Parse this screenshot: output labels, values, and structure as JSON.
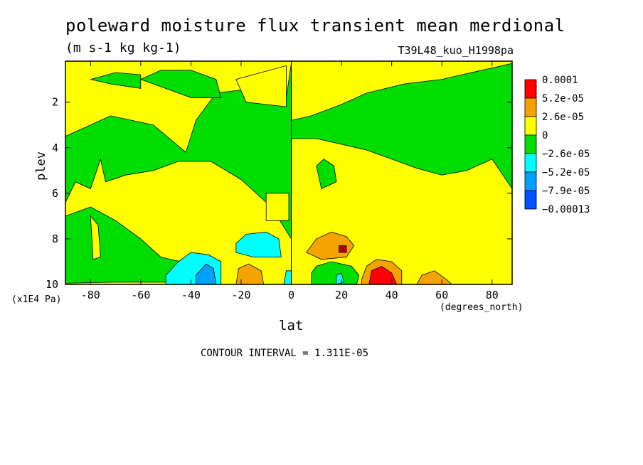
{
  "chart_data": {
    "type": "heatmap",
    "title": "poleward moisture flux transient mean merdional",
    "subtitle": "(m s-1 kg kg-1)",
    "case_label": "T39L48_kuo_H1998pa",
    "xlabel": "lat",
    "x_units": "(degrees_north)",
    "ylabel": "plev",
    "y_units": "(x1E4 Pa)",
    "x_ticks": [
      "-80",
      "-60",
      "-40",
      "-20",
      "0",
      "20",
      "40",
      "60",
      "80"
    ],
    "y_ticks": [
      "2",
      "4",
      "6",
      "8",
      "10"
    ],
    "xlim": [
      -90,
      88
    ],
    "ylim": [
      10,
      0.2
    ],
    "contour_interval_text": "CONTOUR INTERVAL = 1.311E-05",
    "legend_labels": [
      "0.0001",
      "5.2e-05",
      "2.6e-05",
      "0",
      "−2.6e-05",
      "−5.2e-05",
      "−7.9e-05",
      "−0.00013"
    ],
    "colors": {
      "red": "#ff0000",
      "orange": "#f5a300",
      "yellow": "#ffff00",
      "green": "#00dd00",
      "cyan": "#00ffff",
      "lightblue": "#00a0ff",
      "blue": "#0050ff",
      "darkred": "#b00000"
    },
    "regions": [
      {
        "fill": "green",
        "points": [
          [
            -90,
            3.5
          ],
          [
            -80,
            3
          ],
          [
            -72,
            2.6
          ],
          [
            -55,
            3
          ],
          [
            -42,
            4.2
          ],
          [
            -38,
            2.8
          ],
          [
            -30,
            1.6
          ],
          [
            -15,
            1.4
          ],
          [
            -2,
            1.8
          ],
          [
            0,
            0.3
          ],
          [
            0,
            2.8
          ],
          [
            8,
            2.6
          ],
          [
            20,
            2.1
          ],
          [
            30,
            1.6
          ],
          [
            45,
            1.2
          ],
          [
            60,
            1
          ],
          [
            88,
            0.3
          ],
          [
            88,
            5.8
          ],
          [
            80,
            4.5
          ],
          [
            70,
            5
          ],
          [
            60,
            5.2
          ],
          [
            50,
            4.9
          ],
          [
            40,
            4.5
          ],
          [
            30,
            4.1
          ],
          [
            10,
            3.6
          ],
          [
            0,
            3.6
          ],
          [
            0,
            8
          ],
          [
            -8,
            6.6
          ],
          [
            -20,
            5.4
          ],
          [
            -32,
            4.6
          ],
          [
            -45,
            4.6
          ],
          [
            -55,
            5
          ],
          [
            -66,
            5.2
          ],
          [
            -74,
            5.5
          ],
          [
            -76,
            4.5
          ],
          [
            -80,
            5.8
          ],
          [
            -86,
            5.5
          ],
          [
            -90,
            6.4
          ]
        ]
      },
      {
        "fill": "green",
        "points": [
          [
            -90,
            7
          ],
          [
            -80,
            6.6
          ],
          [
            -70,
            7.2
          ],
          [
            -60,
            8
          ],
          [
            -52,
            8.8
          ],
          [
            -44,
            9
          ],
          [
            -40,
            9.6
          ],
          [
            -50,
            9.9
          ],
          [
            -70,
            9.9
          ],
          [
            -90,
            9.95
          ]
        ]
      },
      {
        "fill": "yellow",
        "points": [
          [
            -80,
            7
          ],
          [
            -77,
            7.4
          ],
          [
            -76,
            8.8
          ],
          [
            -79,
            8.9
          ]
        ]
      },
      {
        "fill": "yellow",
        "points": [
          [
            -10,
            6
          ],
          [
            -1,
            6
          ],
          [
            -1,
            7.2
          ],
          [
            -10,
            7.2
          ]
        ]
      },
      {
        "fill": "yellow",
        "points": [
          [
            -22,
            1
          ],
          [
            -2,
            0.4
          ],
          [
            -2,
            2.2
          ],
          [
            -18,
            2
          ]
        ]
      },
      {
        "fill": "green",
        "points": [
          [
            10,
            4.8
          ],
          [
            13,
            4.5
          ],
          [
            17,
            4.8
          ],
          [
            18,
            5.5
          ],
          [
            12,
            5.8
          ]
        ]
      },
      {
        "fill": "green",
        "points": [
          [
            -80,
            1
          ],
          [
            -70,
            0.7
          ],
          [
            -60,
            0.8
          ],
          [
            -60,
            1.4
          ],
          [
            -72,
            1.2
          ]
        ]
      },
      {
        "fill": "cyan",
        "points": [
          [
            -50,
            9.6
          ],
          [
            -45,
            9
          ],
          [
            -40,
            8.6
          ],
          [
            -33,
            8.7
          ],
          [
            -28,
            9
          ],
          [
            -28,
            10
          ],
          [
            -50,
            10
          ]
        ]
      },
      {
        "fill": "lightblue",
        "points": [
          [
            -38,
            9.6
          ],
          [
            -34,
            9.1
          ],
          [
            -31,
            9.3
          ],
          [
            -30,
            10
          ],
          [
            -38,
            10
          ]
        ]
      },
      {
        "fill": "cyan",
        "points": [
          [
            -22,
            8.2
          ],
          [
            -18,
            7.8
          ],
          [
            -10,
            7.7
          ],
          [
            -5,
            8
          ],
          [
            -4,
            8.8
          ],
          [
            -15,
            8.8
          ],
          [
            -22,
            8.6
          ]
        ]
      },
      {
        "fill": "orange",
        "points": [
          [
            -22,
            10
          ],
          [
            -21,
            9.3
          ],
          [
            -17,
            9.1
          ],
          [
            -12,
            9.4
          ],
          [
            -11,
            10
          ]
        ]
      },
      {
        "fill": "cyan",
        "points": [
          [
            -3,
            10
          ],
          [
            -2,
            9.4
          ],
          [
            0,
            9.4
          ],
          [
            0,
            10
          ]
        ]
      },
      {
        "fill": "orange",
        "points": [
          [
            6,
            8.6
          ],
          [
            10,
            8
          ],
          [
            16,
            7.7
          ],
          [
            22,
            7.9
          ],
          [
            25,
            8.3
          ],
          [
            22,
            8.8
          ],
          [
            12,
            8.9
          ]
        ]
      },
      {
        "fill": "darkred",
        "points": [
          [
            19,
            8.3
          ],
          [
            22,
            8.3
          ],
          [
            22,
            8.6
          ],
          [
            19,
            8.6
          ]
        ]
      },
      {
        "fill": "green",
        "points": [
          [
            8,
            9.5
          ],
          [
            10,
            9.2
          ],
          [
            16,
            9
          ],
          [
            24,
            9.2
          ],
          [
            27,
            9.6
          ],
          [
            26,
            10
          ],
          [
            8,
            10
          ]
        ]
      },
      {
        "fill": "cyan",
        "points": [
          [
            18,
            9.6
          ],
          [
            20,
            9.5
          ],
          [
            21,
            9.9
          ],
          [
            18,
            10
          ]
        ]
      },
      {
        "fill": "orange",
        "points": [
          [
            28,
            9.8
          ],
          [
            30,
            9.2
          ],
          [
            34,
            8.9
          ],
          [
            40,
            9
          ],
          [
            44,
            9.4
          ],
          [
            44,
            10
          ],
          [
            28,
            10
          ]
        ]
      },
      {
        "fill": "red",
        "points": [
          [
            31,
            10
          ],
          [
            32,
            9.4
          ],
          [
            36,
            9.2
          ],
          [
            40,
            9.5
          ],
          [
            42,
            10
          ]
        ]
      },
      {
        "fill": "orange",
        "points": [
          [
            50,
            10
          ],
          [
            52,
            9.6
          ],
          [
            57,
            9.4
          ],
          [
            62,
            9.8
          ],
          [
            64,
            10
          ]
        ]
      },
      {
        "fill": "green",
        "points": [
          [
            -60,
            1
          ],
          [
            -52,
            0.6
          ],
          [
            -40,
            0.6
          ],
          [
            -30,
            1
          ],
          [
            -28,
            1.8
          ],
          [
            -40,
            1.8
          ]
        ]
      }
    ]
  }
}
